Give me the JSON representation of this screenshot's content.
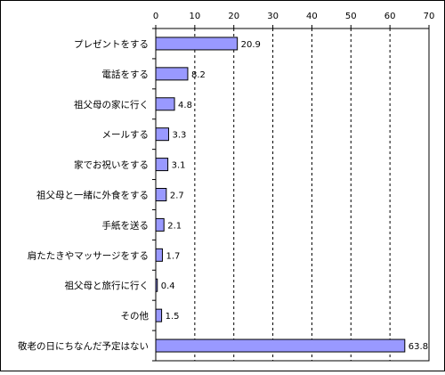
{
  "chart_data": {
    "type": "bar",
    "orientation": "horizontal",
    "title": "",
    "xlabel": "",
    "ylabel": "",
    "xlim": [
      0,
      70
    ],
    "x_ticks": [
      0,
      10,
      20,
      30,
      40,
      50,
      60,
      70
    ],
    "x_tick_labels": [
      "0",
      "10",
      "20",
      "30",
      "40",
      "50",
      "60",
      "70"
    ],
    "x_axis_position": "top",
    "grid": "vertical dashed",
    "categories": [
      "プレゼントをする",
      "電話をする",
      "祖父母の家に行く",
      "メールする",
      "家でお祝いをする",
      "祖父母と一緒に外食をする",
      "手紙を送る",
      "肩たたきやマッサージをする",
      "祖父母と旅行に行く",
      "その他",
      "敬老の日にちなんだ予定はない"
    ],
    "values": [
      20.9,
      8.2,
      4.8,
      3.3,
      3.1,
      2.7,
      2.1,
      1.7,
      0.4,
      1.5,
      63.8
    ],
    "value_labels": [
      "20.9",
      "8.2",
      "4.8",
      "3.3",
      "3.1",
      "2.7",
      "2.1",
      "1.7",
      "0.4",
      "1.5",
      "63.8"
    ],
    "bar_color": "#9999ff",
    "bar_border_color": "#000000"
  }
}
